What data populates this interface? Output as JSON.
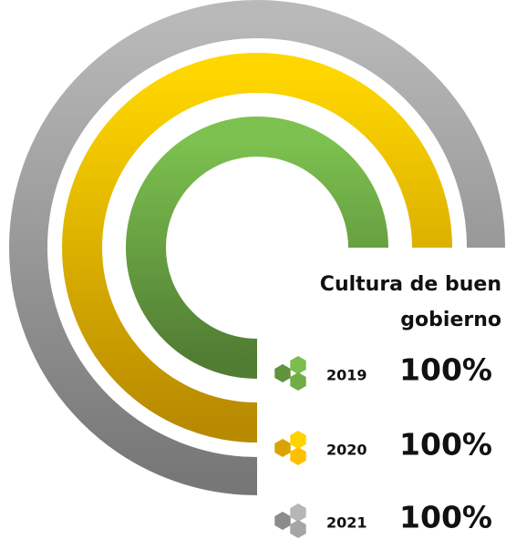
{
  "chart_data": {
    "type": "radial-bar",
    "title": "Cultura de buen gobierno",
    "title_lines": [
      "Cultura de buen",
      "gobierno"
    ],
    "ylim": [
      0,
      100
    ],
    "series": [
      {
        "name": "2019",
        "color": "#70ad47",
        "values": [
          100
        ],
        "value_labels": [
          "100%"
        ]
      },
      {
        "name": "2020",
        "color": "#ffc000",
        "values": [
          100
        ],
        "value_labels": [
          "100%"
        ]
      },
      {
        "name": "2021",
        "color": "#a5a5a5",
        "values": [
          100
        ],
        "value_labels": [
          "100%"
        ]
      }
    ]
  }
}
